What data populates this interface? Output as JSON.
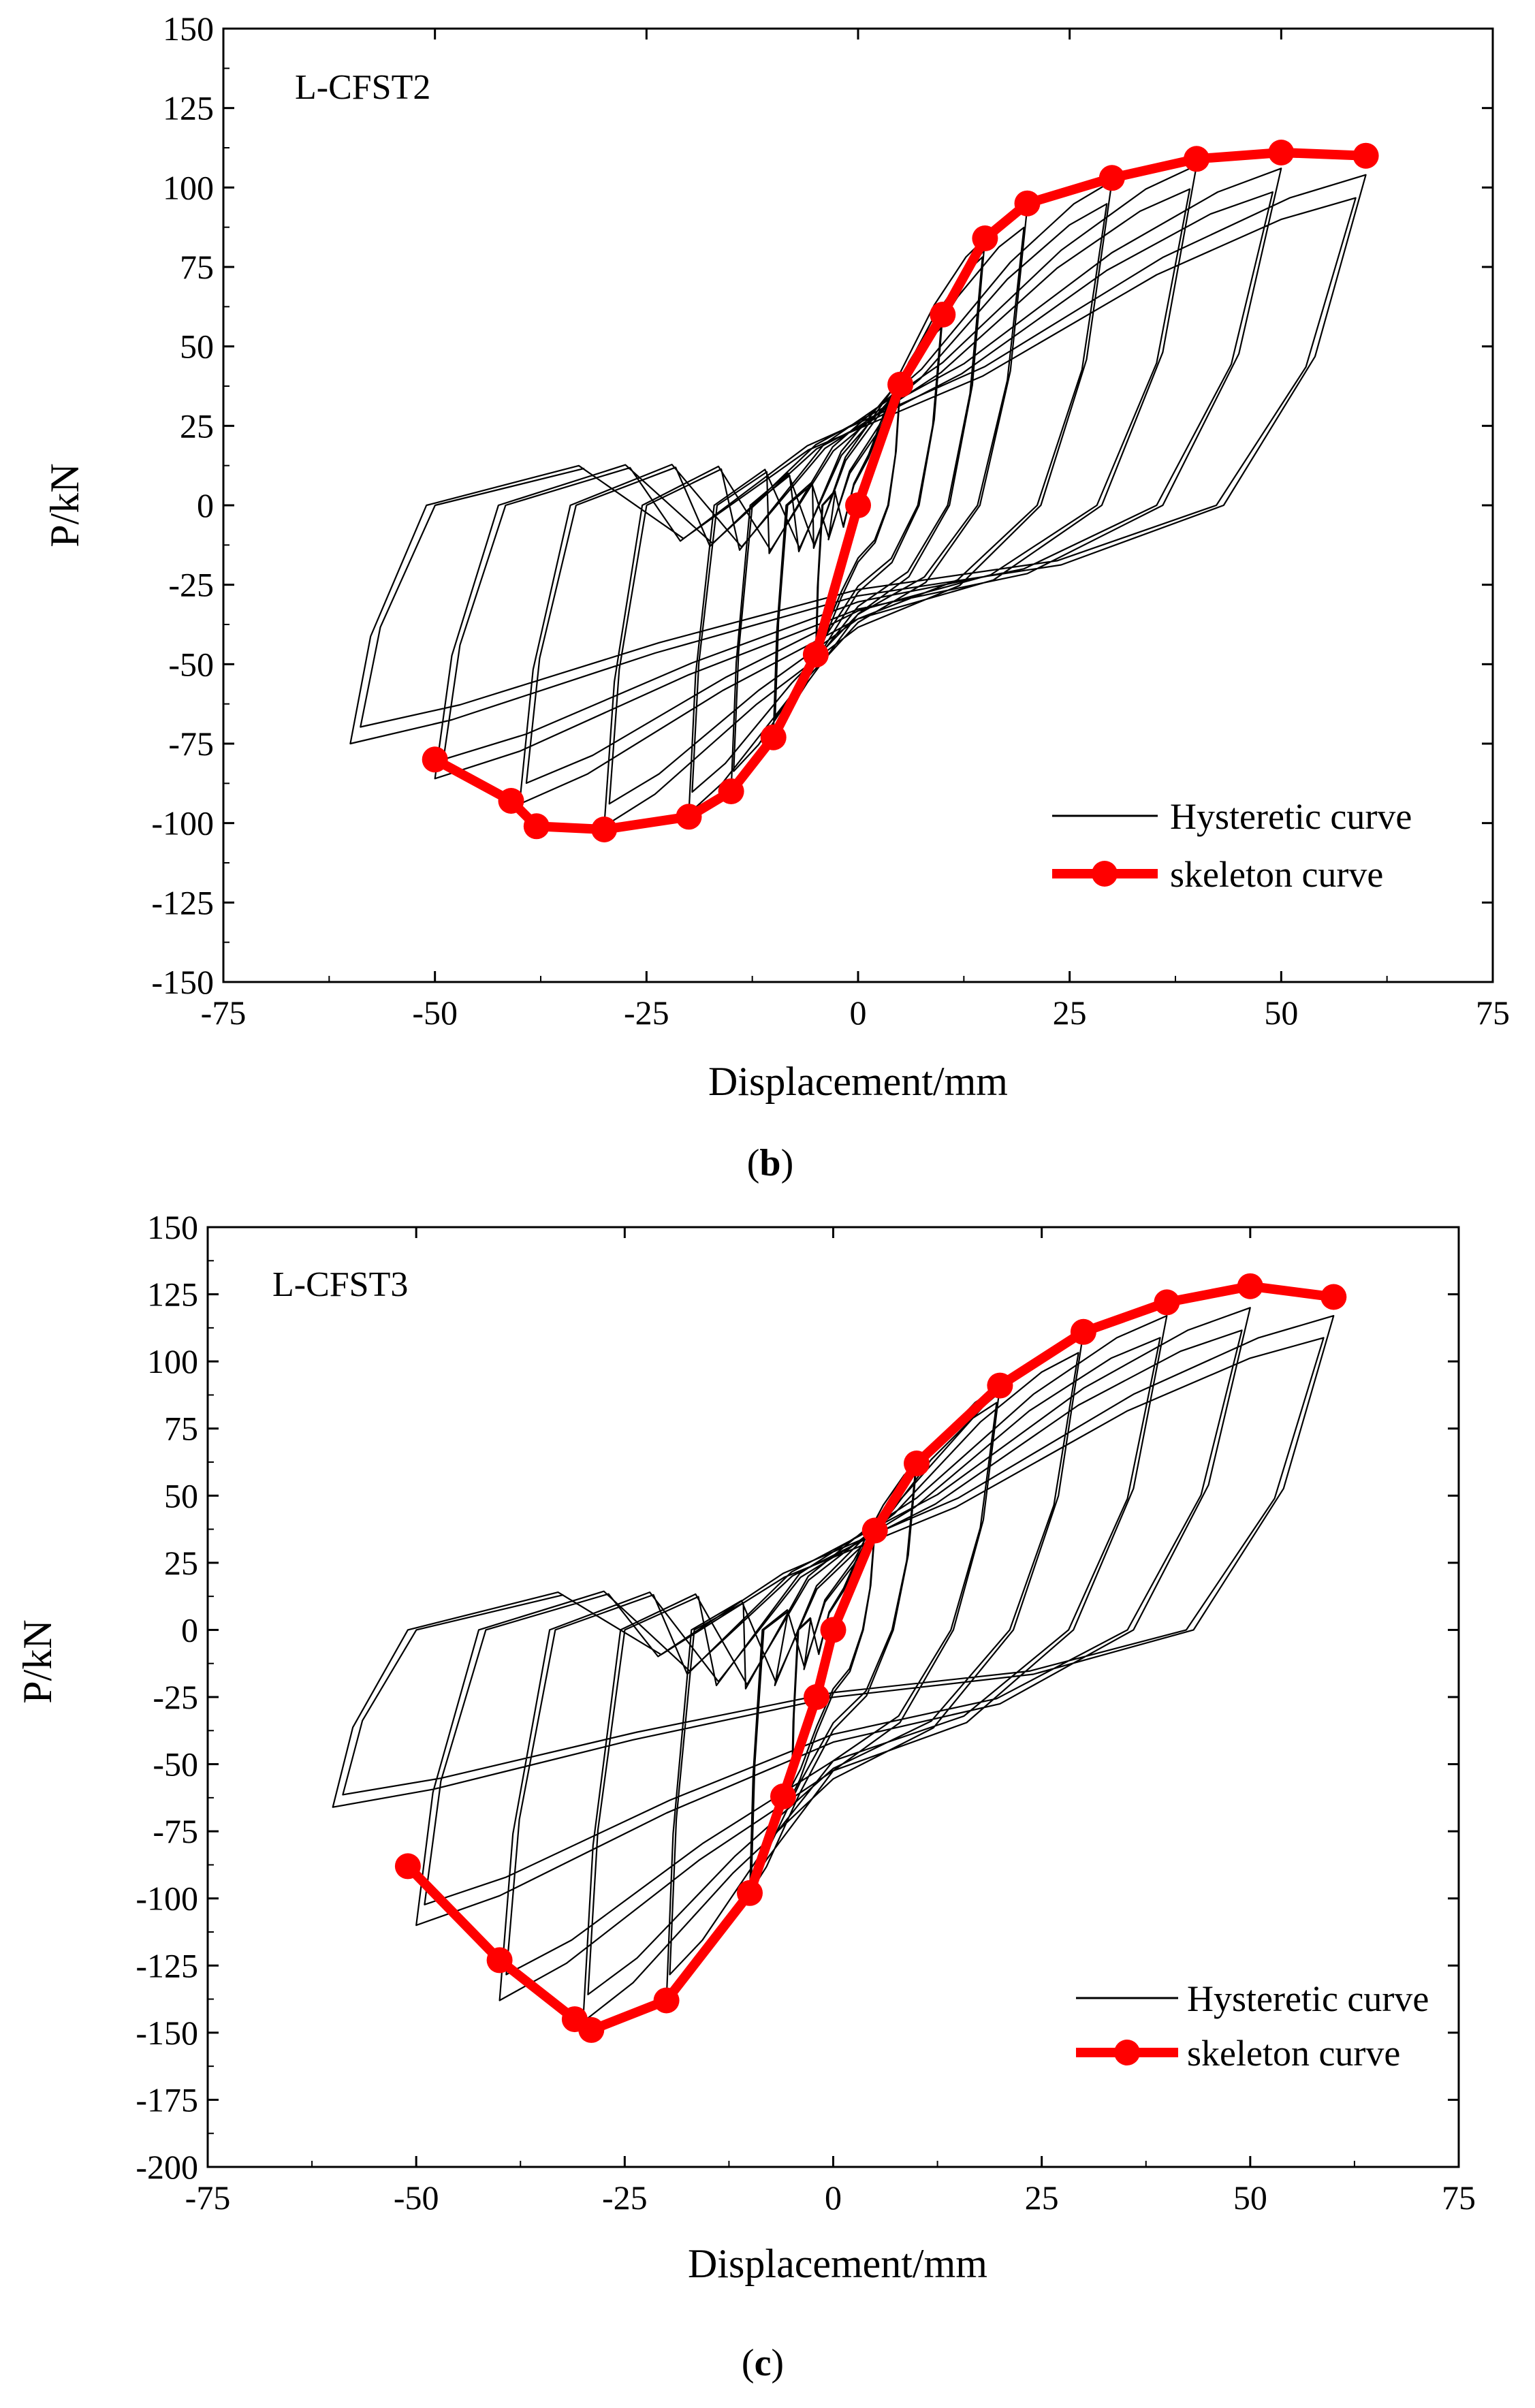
{
  "chart_data": [
    {
      "type": "line",
      "panel": "b",
      "caption": "(b)",
      "caption_open": "(",
      "caption_letter": "b",
      "caption_close": ")",
      "specimen_label": "L-CFST2",
      "xlabel": "Displacement/mm",
      "ylabel": "P/kN",
      "xlim": [
        -75,
        75
      ],
      "ylim": [
        -150,
        150
      ],
      "x_ticks": [
        -75,
        -50,
        -25,
        0,
        25,
        50,
        75
      ],
      "y_ticks": [
        150,
        125,
        100,
        75,
        50,
        25,
        0,
        -25,
        -50,
        -75,
        -100,
        -125,
        -150
      ],
      "grid": false,
      "legend_position": "bottom-right",
      "series": [
        {
          "name": "Hysteretic curve",
          "style": "thin black line",
          "color": "#000000",
          "loops": [
            {
              "amp_pos": 5,
              "peak_pos": 38,
              "amp_neg": -5,
              "peak_neg": -47
            },
            {
              "amp_pos": 10,
              "peak_pos": 60,
              "amp_neg": -10,
              "peak_neg": -72
            },
            {
              "amp_pos": 15,
              "peak_pos": 84,
              "amp_neg": -15,
              "peak_neg": -90
            },
            {
              "amp_pos": 20,
              "peak_pos": 94,
              "amp_neg": -20,
              "peak_neg": -97
            },
            {
              "amp_pos": 30,
              "peak_pos": 102,
              "amp_neg": -30,
              "peak_neg": -101
            },
            {
              "amp_pos": 40,
              "peak_pos": 107,
              "amp_neg": -40,
              "peak_neg": -94
            },
            {
              "amp_pos": 50,
              "peak_pos": 106,
              "amp_neg": -50,
              "peak_neg": -86
            },
            {
              "amp_pos": 60,
              "peak_pos": 104,
              "amp_neg": -60,
              "peak_neg": -75
            }
          ]
        },
        {
          "name": "skeleton curve",
          "style": "thick red line with circle markers",
          "color": "#ff0000",
          "x": [
            -50,
            -41,
            -38,
            -30,
            -20,
            -15,
            -10,
            -5,
            0,
            5,
            10,
            15,
            20,
            30,
            40,
            50,
            60
          ],
          "y": [
            -80,
            -93,
            -101,
            -102,
            -98,
            -90,
            -73,
            -47,
            0,
            38,
            60,
            84,
            95,
            103,
            109,
            111,
            110
          ]
        }
      ]
    },
    {
      "type": "line",
      "panel": "c",
      "caption": "(c)",
      "caption_open": "(",
      "caption_letter": "c",
      "caption_close": ")",
      "specimen_label": "L-CFST3",
      "xlabel": "Displacement/mm",
      "ylabel": "P/kN",
      "xlim": [
        -75,
        75
      ],
      "ylim": [
        -200,
        150
      ],
      "x_ticks": [
        -75,
        -50,
        -25,
        0,
        25,
        50,
        75
      ],
      "y_ticks": [
        150,
        125,
        100,
        75,
        50,
        25,
        0,
        -25,
        -50,
        -75,
        -100,
        -125,
        -150,
        -175,
        -200
      ],
      "grid": false,
      "legend_position": "bottom-right",
      "series": [
        {
          "name": "Hysteretic curve",
          "style": "thin black line",
          "color": "#000000",
          "loops": [
            {
              "amp_pos": 5,
              "peak_pos": 37,
              "amp_neg": -5,
              "peak_neg": -62
            },
            {
              "amp_pos": 10,
              "peak_pos": 62,
              "amp_neg": -10,
              "peak_neg": -98
            },
            {
              "amp_pos": 20,
              "peak_pos": 91,
              "amp_neg": -20,
              "peak_neg": -138
            },
            {
              "amp_pos": 30,
              "peak_pos": 111,
              "amp_neg": -30,
              "peak_neg": -146
            },
            {
              "amp_pos": 40,
              "peak_pos": 117,
              "amp_neg": -40,
              "peak_neg": -138
            },
            {
              "amp_pos": 50,
              "peak_pos": 120,
              "amp_neg": -50,
              "peak_neg": -110
            },
            {
              "amp_pos": 60,
              "peak_pos": 117,
              "amp_neg": -60,
              "peak_neg": -66
            }
          ]
        },
        {
          "name": "skeleton curve",
          "style": "thick red line with circle markers",
          "color": "#ff0000",
          "x": [
            -51,
            -40,
            -31,
            -29,
            -20,
            -10,
            -6,
            -2,
            0,
            5,
            10,
            20,
            30,
            40,
            50,
            60
          ],
          "y": [
            -88,
            -123,
            -145,
            -149,
            -138,
            -98,
            -62,
            -25,
            0,
            37,
            62,
            91,
            111,
            122,
            128,
            124
          ]
        }
      ]
    }
  ]
}
